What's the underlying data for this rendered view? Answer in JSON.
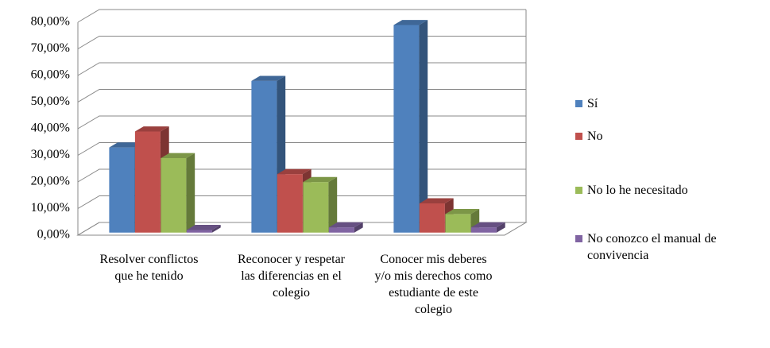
{
  "chart_data": {
    "type": "bar3d",
    "categories": [
      "Resolver conflictos que he tenido",
      "Reconocer y respetar las diferencias en el colegio",
      "Conocer mis deberes y/o mis derechos como estudiante de este colegio"
    ],
    "series": [
      {
        "name": "Sí",
        "color": "#4f81bd",
        "values": [
          32,
          57,
          78
        ]
      },
      {
        "name": "No",
        "color": "#c0504d",
        "values": [
          38,
          22,
          11
        ]
      },
      {
        "name": "No lo he necesitado",
        "color": "#9bbb59",
        "values": [
          28,
          19,
          7
        ]
      },
      {
        "name": "No conozco el manual de convivencia",
        "color": "#8064a2",
        "values": [
          1,
          2,
          2
        ]
      }
    ],
    "ylim": [
      0,
      80
    ],
    "yticks": [
      {
        "value": 0,
        "label": "0,00%"
      },
      {
        "value": 10,
        "label": "10,00%"
      },
      {
        "value": 20,
        "label": "20,00%"
      },
      {
        "value": 30,
        "label": "30,00%"
      },
      {
        "value": 40,
        "label": "40,00%"
      },
      {
        "value": 50,
        "label": "50,00%"
      },
      {
        "value": 60,
        "label": "60,00%"
      },
      {
        "value": 70,
        "label": "70,00%"
      },
      {
        "value": 80,
        "label": "80,00%"
      }
    ],
    "grid": true
  }
}
